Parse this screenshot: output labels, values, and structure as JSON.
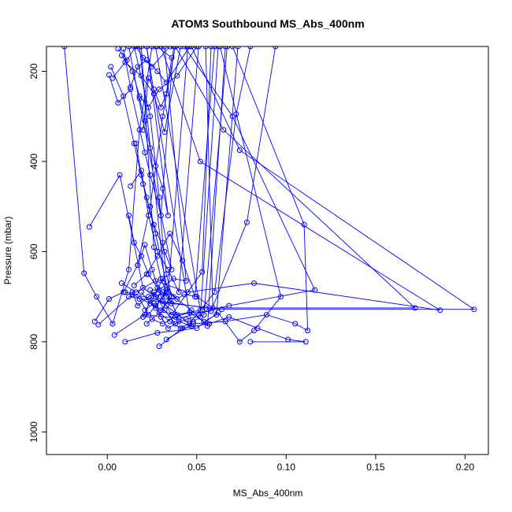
{
  "chart_data": {
    "type": "line",
    "title": "ATOM3 Southbound MS_Abs_400nm",
    "xlabel": "MS_Abs_400nm",
    "ylabel": "Pressure (mbar)",
    "xlim": [
      -0.034,
      0.213
    ],
    "ylim": [
      1050,
      145
    ],
    "y_reversed": true,
    "x_ticks": [
      0.0,
      0.05,
      0.1,
      0.15,
      0.2
    ],
    "x_tick_labels": [
      "0.00",
      "0.05",
      "0.10",
      "0.15",
      "0.20"
    ],
    "y_ticks": [
      200,
      400,
      600,
      800,
      1000
    ],
    "y_tick_labels": [
      "200",
      "400",
      "600",
      "800",
      "1000"
    ],
    "series_color": "#0000ff",
    "marker": "open-circle",
    "legend": "none",
    "grid": false,
    "series": [
      {
        "points": [
          [
            -0.024,
            145
          ],
          [
            -0.013,
            648
          ],
          [
            -0.006,
            700
          ],
          [
            0.003,
            760
          ],
          [
            0.012,
            640
          ],
          [
            0.018,
            330
          ],
          [
            0.025,
            145
          ]
        ]
      },
      {
        "points": [
          [
            -0.01,
            545
          ],
          [
            0.007,
            430
          ],
          [
            0.02,
            680
          ],
          [
            0.033,
            720
          ],
          [
            0.046,
            760
          ],
          [
            0.06,
            690
          ],
          [
            0.072,
            295
          ],
          [
            0.08,
            145
          ]
        ]
      },
      {
        "points": [
          [
            -0.007,
            755
          ],
          [
            0.001,
            705
          ],
          [
            0.009,
            690
          ],
          [
            0.017,
            630
          ],
          [
            0.024,
            500
          ],
          [
            0.031,
            300
          ],
          [
            0.038,
            145
          ]
        ]
      },
      {
        "points": [
          [
            -0.005,
            762
          ],
          [
            0.014,
            695
          ],
          [
            0.036,
            740
          ],
          [
            0.058,
            732
          ],
          [
            0.078,
            535
          ],
          [
            0.094,
            145
          ]
        ]
      },
      {
        "points": [
          [
            0.004,
            785
          ],
          [
            0.021,
            740
          ],
          [
            0.04,
            748
          ],
          [
            0.068,
            720
          ],
          [
            0.116,
            685
          ],
          [
            0.07,
            300
          ],
          [
            0.043,
            145
          ]
        ]
      },
      {
        "points": [
          [
            0.01,
            800
          ],
          [
            0.028,
            780
          ],
          [
            0.05,
            770
          ],
          [
            0.062,
            735
          ],
          [
            0.074,
            800
          ],
          [
            0.082,
            775
          ],
          [
            0.097,
            700
          ],
          [
            0.063,
            145
          ]
        ]
      },
      {
        "points": [
          [
            0.029,
            810
          ],
          [
            0.042,
            770
          ],
          [
            0.057,
            760
          ],
          [
            0.068,
            745
          ],
          [
            0.084,
            770
          ],
          [
            0.101,
            795
          ],
          [
            0.111,
            800
          ],
          [
            0.08,
            800
          ]
        ]
      },
      {
        "points": [
          [
            0.033,
            795
          ],
          [
            0.048,
            760
          ],
          [
            0.066,
            755
          ],
          [
            0.089,
            740
          ],
          [
            0.105,
            760
          ],
          [
            0.112,
            775
          ],
          [
            0.11,
            540
          ],
          [
            0.07,
            145
          ]
        ]
      },
      {
        "points": [
          [
            0.008,
            670
          ],
          [
            0.016,
            690
          ],
          [
            0.027,
            665
          ],
          [
            0.045,
            690
          ],
          [
            0.082,
            670
          ],
          [
            0.186,
            730
          ],
          [
            0.052,
            400
          ],
          [
            0.03,
            145
          ]
        ]
      },
      {
        "points": [
          [
            0.01,
            690
          ],
          [
            0.031,
            710
          ],
          [
            0.055,
            725
          ],
          [
            0.172,
            725
          ],
          [
            0.065,
            330
          ],
          [
            0.038,
            145
          ]
        ]
      },
      {
        "points": [
          [
            0.012,
            700
          ],
          [
            0.036,
            715
          ],
          [
            0.064,
            728
          ],
          [
            0.205,
            728
          ],
          [
            0.074,
            375
          ],
          [
            0.047,
            145
          ]
        ]
      },
      {
        "points": [
          [
            0.002,
            190
          ],
          [
            0.009,
            255
          ],
          [
            0.015,
            360
          ],
          [
            0.02,
            450
          ],
          [
            0.027,
            560
          ],
          [
            0.034,
            690
          ],
          [
            0.045,
            145
          ]
        ]
      },
      {
        "points": [
          [
            0.001,
            208
          ],
          [
            0.006,
            270
          ],
          [
            0.013,
            240
          ],
          [
            0.021,
            380
          ],
          [
            0.024,
            430
          ],
          [
            0.03,
            520
          ],
          [
            0.037,
            145
          ]
        ]
      },
      {
        "points": [
          [
            0.003,
            215
          ],
          [
            0.01,
            180
          ],
          [
            0.019,
            210
          ],
          [
            0.026,
            250
          ],
          [
            0.032,
            335
          ],
          [
            0.041,
            145
          ]
        ]
      },
      {
        "points": [
          [
            0.008,
            165
          ],
          [
            0.014,
            200
          ],
          [
            0.018,
            255
          ],
          [
            0.023,
            280
          ],
          [
            0.029,
            240
          ],
          [
            0.039,
            210
          ],
          [
            0.05,
            145
          ]
        ]
      },
      {
        "points": [
          [
            0.009,
            150
          ],
          [
            0.013,
            235
          ],
          [
            0.017,
            190
          ],
          [
            0.022,
            175
          ],
          [
            0.028,
            200
          ],
          [
            0.033,
            225
          ],
          [
            0.046,
            145
          ]
        ]
      },
      {
        "points": [
          [
            0.006,
            150
          ],
          [
            0.011,
            175
          ],
          [
            0.016,
            145
          ],
          [
            0.02,
            170
          ],
          [
            0.025,
            190
          ],
          [
            0.035,
            145
          ]
        ]
      },
      {
        "points": [
          [
            0.013,
            455
          ],
          [
            0.019,
            420
          ],
          [
            0.023,
            520
          ],
          [
            0.028,
            600
          ],
          [
            0.034,
            640
          ],
          [
            0.04,
            690
          ],
          [
            0.051,
            145
          ]
        ]
      },
      {
        "points": [
          [
            0.017,
            630
          ],
          [
            0.021,
            585
          ],
          [
            0.025,
            640
          ],
          [
            0.03,
            700
          ],
          [
            0.036,
            740
          ],
          [
            0.053,
            645
          ],
          [
            0.058,
            145
          ]
        ]
      },
      {
        "points": [
          [
            0.02,
            745
          ],
          [
            0.026,
            690
          ],
          [
            0.032,
            730
          ],
          [
            0.038,
            760
          ],
          [
            0.044,
            750
          ],
          [
            0.054,
            740
          ],
          [
            0.067,
            145
          ]
        ]
      },
      {
        "points": [
          [
            0.022,
            760
          ],
          [
            0.029,
            735
          ],
          [
            0.035,
            755
          ],
          [
            0.041,
            770
          ],
          [
            0.048,
            755
          ],
          [
            0.052,
            745
          ],
          [
            0.062,
            145
          ]
        ]
      },
      {
        "points": [
          [
            0.025,
            750
          ],
          [
            0.031,
            760
          ],
          [
            0.038,
            745
          ],
          [
            0.046,
            735
          ],
          [
            0.054,
            755
          ],
          [
            0.061,
            740
          ],
          [
            0.073,
            145
          ]
        ]
      },
      {
        "points": [
          [
            0.027,
            725
          ],
          [
            0.033,
            685
          ],
          [
            0.039,
            705
          ],
          [
            0.043,
            695
          ],
          [
            0.05,
            700
          ],
          [
            0.059,
            725
          ],
          [
            0.055,
            145
          ]
        ]
      },
      {
        "points": [
          [
            0.015,
            675
          ],
          [
            0.022,
            650
          ],
          [
            0.028,
            610
          ],
          [
            0.035,
            560
          ],
          [
            0.042,
            620
          ],
          [
            0.049,
            700
          ],
          [
            0.06,
            145
          ]
        ]
      },
      {
        "points": [
          [
            0.019,
            690
          ],
          [
            0.024,
            715
          ],
          [
            0.031,
            660
          ],
          [
            0.037,
            700
          ],
          [
            0.047,
            730
          ],
          [
            0.056,
            765
          ],
          [
            0.066,
            145
          ]
        ]
      },
      {
        "points": [
          [
            0.014,
            690
          ],
          [
            0.017,
            720
          ],
          [
            0.023,
            700
          ],
          [
            0.029,
            685
          ],
          [
            0.037,
            660
          ],
          [
            0.044,
            665
          ],
          [
            0.032,
            145
          ]
        ]
      },
      {
        "points": [
          [
            0.018,
            705
          ],
          [
            0.023,
            740
          ],
          [
            0.027,
            720
          ],
          [
            0.033,
            690
          ],
          [
            0.039,
            740
          ],
          [
            0.052,
            730
          ],
          [
            0.027,
            145
          ]
        ]
      },
      {
        "points": [
          [
            0.021,
            730
          ],
          [
            0.026,
            715
          ],
          [
            0.03,
            745
          ],
          [
            0.034,
            770
          ],
          [
            0.04,
            755
          ],
          [
            0.047,
            765
          ],
          [
            0.022,
            145
          ]
        ]
      },
      {
        "points": [
          [
            0.024,
            685
          ],
          [
            0.027,
            700
          ],
          [
            0.031,
            690
          ],
          [
            0.035,
            710
          ],
          [
            0.03,
            660
          ],
          [
            0.026,
            590
          ],
          [
            0.019,
            145
          ]
        ]
      },
      {
        "points": [
          [
            0.03,
            730
          ],
          [
            0.036,
            700
          ],
          [
            0.033,
            650
          ],
          [
            0.031,
            580
          ],
          [
            0.029,
            480
          ],
          [
            0.024,
            300
          ],
          [
            0.015,
            145
          ]
        ]
      },
      {
        "points": [
          [
            0.02,
            330
          ],
          [
            0.023,
            215
          ],
          [
            0.026,
            240
          ],
          [
            0.03,
            280
          ],
          [
            0.033,
            250
          ],
          [
            0.036,
            170
          ],
          [
            0.028,
            145
          ]
        ]
      },
      {
        "points": [
          [
            0.018,
            260
          ],
          [
            0.021,
            310
          ],
          [
            0.024,
            370
          ],
          [
            0.027,
            410
          ],
          [
            0.031,
            460
          ],
          [
            0.034,
            520
          ],
          [
            0.022,
            145
          ]
        ]
      },
      {
        "points": [
          [
            0.016,
            360
          ],
          [
            0.019,
            430
          ],
          [
            0.022,
            480
          ],
          [
            0.026,
            540
          ],
          [
            0.032,
            600
          ],
          [
            0.036,
            640
          ],
          [
            0.012,
            145
          ]
        ]
      },
      {
        "points": [
          [
            0.012,
            520
          ],
          [
            0.015,
            580
          ],
          [
            0.019,
            610
          ],
          [
            0.023,
            650
          ],
          [
            0.028,
            680
          ],
          [
            0.033,
            700
          ],
          [
            0.018,
            145
          ]
        ]
      }
    ]
  }
}
